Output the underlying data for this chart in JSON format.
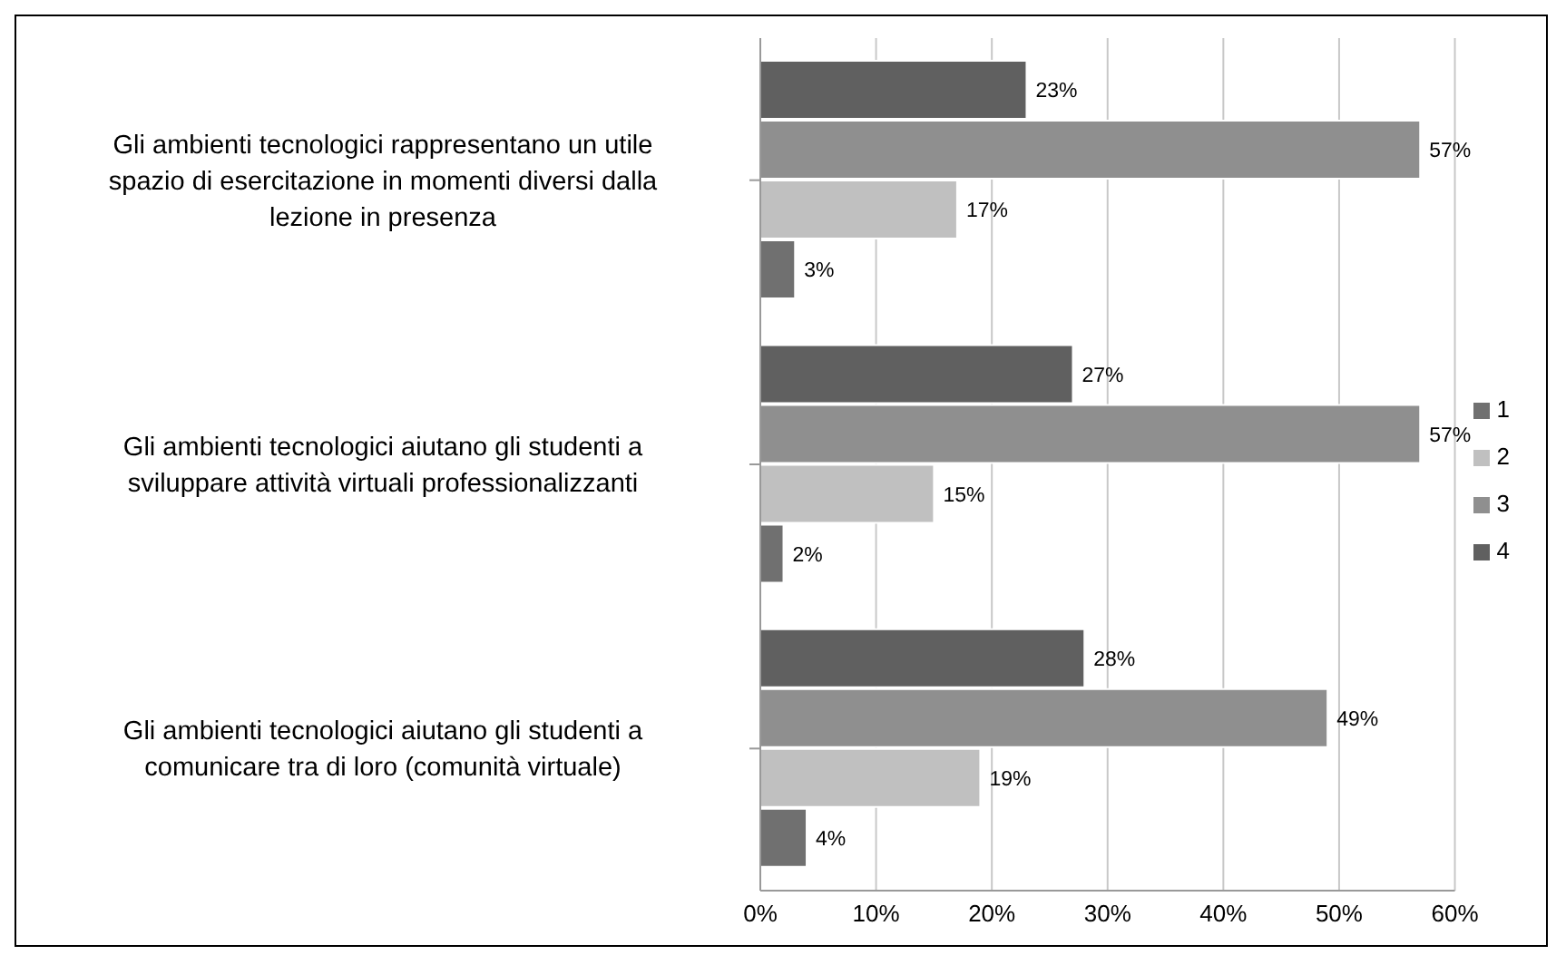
{
  "chart_data": {
    "type": "bar",
    "orientation": "horizontal",
    "categories": [
      "Gli ambienti tecnologici rappresentano un utile spazio di esercitazione in momenti diversi dalla lezione in presenza",
      "Gli ambienti tecnologici aiutano gli studenti a sviluppare attività virtuali professionalizzanti",
      "Gli ambienti tecnologici aiutano gli studenti a comunicare tra di loro (comunità virtuale)"
    ],
    "series": [
      {
        "name": "4",
        "color": "#606060",
        "values": [
          23,
          27,
          28
        ],
        "value_labels": [
          "23%",
          "27%",
          "28%"
        ]
      },
      {
        "name": "3",
        "color": "#8f8f8f",
        "values": [
          57,
          57,
          49
        ],
        "value_labels": [
          "57%",
          "57%",
          "49%"
        ]
      },
      {
        "name": "2",
        "color": "#c0c0c0",
        "values": [
          17,
          15,
          19
        ],
        "value_labels": [
          "17%",
          "15%",
          "19%"
        ]
      },
      {
        "name": "1",
        "color": "#707070",
        "values": [
          3,
          2,
          4
        ],
        "value_labels": [
          "3%",
          "2%",
          "4%"
        ]
      }
    ],
    "xlim": [
      0,
      60
    ],
    "xticks": [
      {
        "value": 0,
        "label": "0%"
      },
      {
        "value": 10,
        "label": "10%"
      },
      {
        "value": 20,
        "label": "20%"
      },
      {
        "value": 30,
        "label": "30%"
      },
      {
        "value": 40,
        "label": "40%"
      },
      {
        "value": 50,
        "label": "50%"
      },
      {
        "value": 60,
        "label": "60%"
      }
    ],
    "grid": "x",
    "legend": "right"
  }
}
